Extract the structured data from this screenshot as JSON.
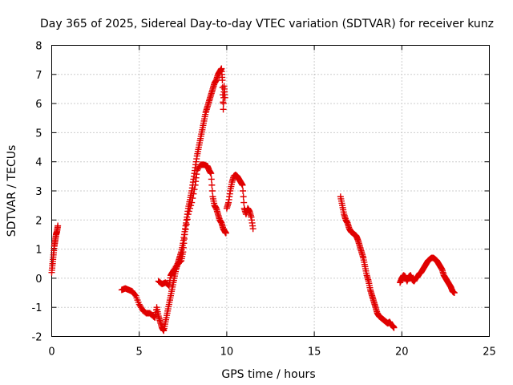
{
  "chart_data": {
    "type": "scatter",
    "title": "Day 365 of 2025, Sidereal Day-to-day VTEC variation (SDTVAR) for receiver kunz",
    "xlabel": "GPS time / hours",
    "ylabel": "SDTVAR / TECUs",
    "xlim": [
      0,
      25
    ],
    "ylim": [
      -2,
      8
    ],
    "xticks": [
      "0",
      "5",
      "10",
      "15",
      "20",
      "25"
    ],
    "yticks": [
      "-2",
      "-1",
      "0",
      "1",
      "2",
      "3",
      "4",
      "5",
      "6",
      "7",
      "8"
    ],
    "grid": true,
    "marker": "plus",
    "color": "#e00000",
    "series": [
      {
        "name": "SDTVAR",
        "segments": [
          [
            [
              0.0,
              0.2
            ],
            [
              0.05,
              0.5
            ],
            [
              0.1,
              0.8
            ],
            [
              0.15,
              1.1
            ],
            [
              0.2,
              1.3
            ],
            [
              0.25,
              1.5
            ],
            [
              0.3,
              1.6
            ],
            [
              0.35,
              1.8
            ]
          ],
          [
            [
              4.0,
              -0.4
            ],
            [
              4.2,
              -0.35
            ],
            [
              4.4,
              -0.4
            ],
            [
              4.6,
              -0.45
            ],
            [
              4.8,
              -0.6
            ],
            [
              5.0,
              -0.9
            ],
            [
              5.2,
              -1.1
            ],
            [
              5.4,
              -1.2
            ],
            [
              5.6,
              -1.2
            ],
            [
              5.8,
              -1.3
            ],
            [
              5.9,
              -1.35
            ],
            [
              6.0,
              -1.0
            ],
            [
              6.1,
              -1.3
            ],
            [
              6.2,
              -1.5
            ],
            [
              6.3,
              -1.7
            ],
            [
              6.4,
              -1.8
            ],
            [
              6.5,
              -1.5
            ],
            [
              6.6,
              -1.2
            ],
            [
              6.7,
              -0.9
            ],
            [
              6.8,
              -0.6
            ],
            [
              6.9,
              -0.3
            ],
            [
              7.0,
              0.0
            ],
            [
              7.1,
              0.3
            ],
            [
              7.2,
              0.5
            ],
            [
              7.3,
              0.7
            ],
            [
              7.4,
              0.9
            ],
            [
              7.5,
              1.2
            ],
            [
              7.6,
              1.6
            ],
            [
              7.7,
              2.0
            ],
            [
              7.8,
              2.4
            ],
            [
              7.9,
              2.7
            ],
            [
              8.0,
              3.0
            ],
            [
              8.1,
              3.4
            ],
            [
              8.2,
              3.8
            ],
            [
              8.3,
              4.2
            ],
            [
              8.4,
              4.5
            ],
            [
              8.5,
              4.8
            ],
            [
              8.6,
              5.1
            ],
            [
              8.7,
              5.4
            ],
            [
              8.8,
              5.7
            ],
            [
              8.9,
              5.9
            ],
            [
              9.0,
              6.1
            ],
            [
              9.1,
              6.3
            ],
            [
              9.2,
              6.5
            ],
            [
              9.3,
              6.7
            ],
            [
              9.4,
              6.8
            ],
            [
              9.5,
              7.0
            ],
            [
              9.6,
              7.1
            ],
            [
              9.7,
              7.2
            ],
            [
              9.75,
              6.8
            ],
            [
              9.8,
              5.8
            ],
            [
              9.85,
              6.6
            ],
            [
              9.9,
              6.2
            ]
          ],
          [
            [
              6.1,
              -0.1
            ],
            [
              6.3,
              -0.2
            ],
            [
              6.5,
              -0.15
            ],
            [
              6.7,
              -0.25
            ],
            [
              6.8,
              0.1
            ],
            [
              6.9,
              0.2
            ],
            [
              7.0,
              0.3
            ],
            [
              7.2,
              0.5
            ],
            [
              7.4,
              0.6
            ],
            [
              7.5,
              0.9
            ],
            [
              7.6,
              1.5
            ],
            [
              7.8,
              2.2
            ],
            [
              8.0,
              2.6
            ],
            [
              8.2,
              3.2
            ],
            [
              8.3,
              3.7
            ],
            [
              8.5,
              3.9
            ],
            [
              8.7,
              3.9
            ],
            [
              8.9,
              3.85
            ],
            [
              9.0,
              3.7
            ],
            [
              9.1,
              3.6
            ],
            [
              9.2,
              2.8
            ],
            [
              9.3,
              2.5
            ],
            [
              9.4,
              2.4
            ],
            [
              9.5,
              2.2
            ],
            [
              9.6,
              2.0
            ],
            [
              9.7,
              1.9
            ],
            [
              9.8,
              1.7
            ],
            [
              9.9,
              1.6
            ],
            [
              9.95,
              1.55
            ]
          ],
          [
            [
              10.0,
              2.4
            ],
            [
              10.1,
              2.6
            ],
            [
              10.2,
              3.0
            ],
            [
              10.3,
              3.3
            ],
            [
              10.4,
              3.5
            ],
            [
              10.5,
              3.55
            ],
            [
              10.6,
              3.5
            ],
            [
              10.7,
              3.4
            ],
            [
              10.8,
              3.3
            ],
            [
              10.9,
              3.2
            ],
            [
              11.0,
              2.4
            ],
            [
              11.1,
              2.2
            ],
            [
              11.2,
              2.4
            ],
            [
              11.3,
              2.3
            ],
            [
              11.4,
              2.1
            ],
            [
              11.5,
              1.7
            ]
          ],
          [
            [
              16.5,
              2.8
            ],
            [
              16.6,
              2.5
            ],
            [
              16.7,
              2.2
            ],
            [
              16.8,
              2.0
            ],
            [
              16.9,
              1.9
            ],
            [
              17.0,
              1.7
            ],
            [
              17.1,
              1.6
            ],
            [
              17.2,
              1.55
            ],
            [
              17.3,
              1.5
            ],
            [
              17.4,
              1.45
            ],
            [
              17.5,
              1.3
            ],
            [
              17.6,
              1.1
            ],
            [
              17.7,
              0.9
            ],
            [
              17.8,
              0.7
            ],
            [
              17.9,
              0.4
            ],
            [
              18.0,
              0.1
            ],
            [
              18.1,
              -0.1
            ],
            [
              18.2,
              -0.4
            ],
            [
              18.3,
              -0.6
            ],
            [
              18.4,
              -0.8
            ],
            [
              18.5,
              -1.0
            ],
            [
              18.6,
              -1.2
            ],
            [
              18.7,
              -1.3
            ],
            [
              18.8,
              -1.35
            ],
            [
              18.9,
              -1.4
            ],
            [
              19.0,
              -1.45
            ],
            [
              19.1,
              -1.5
            ],
            [
              19.2,
              -1.55
            ],
            [
              19.3,
              -1.5
            ],
            [
              19.4,
              -1.6
            ],
            [
              19.5,
              -1.65
            ],
            [
              19.55,
              -1.7
            ]
          ],
          [
            [
              19.9,
              -0.15
            ],
            [
              20.0,
              0.0
            ],
            [
              20.1,
              0.1
            ],
            [
              20.2,
              0.05
            ],
            [
              20.3,
              -0.1
            ],
            [
              20.4,
              0.05
            ],
            [
              20.5,
              0.1
            ],
            [
              20.6,
              -0.05
            ],
            [
              20.7,
              -0.1
            ],
            [
              20.8,
              0.0
            ],
            [
              20.9,
              0.05
            ],
            [
              21.0,
              0.15
            ],
            [
              21.1,
              0.2
            ],
            [
              21.2,
              0.3
            ],
            [
              21.3,
              0.4
            ],
            [
              21.4,
              0.5
            ],
            [
              21.5,
              0.6
            ],
            [
              21.6,
              0.65
            ],
            [
              21.7,
              0.7
            ],
            [
              21.8,
              0.7
            ],
            [
              21.9,
              0.65
            ],
            [
              22.0,
              0.6
            ],
            [
              22.1,
              0.5
            ],
            [
              22.2,
              0.4
            ],
            [
              22.3,
              0.3
            ],
            [
              22.4,
              0.1
            ],
            [
              22.5,
              0.0
            ],
            [
              22.6,
              -0.1
            ],
            [
              22.7,
              -0.2
            ],
            [
              22.8,
              -0.3
            ],
            [
              22.9,
              -0.45
            ],
            [
              23.0,
              -0.5
            ]
          ]
        ]
      }
    ]
  }
}
